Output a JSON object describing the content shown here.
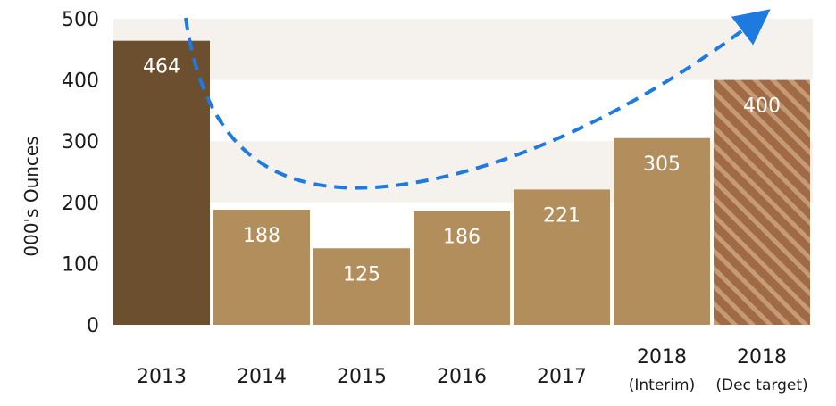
{
  "chart_data": {
    "type": "bar",
    "categories": [
      "2013",
      "2014",
      "2015",
      "2016",
      "2017",
      "2018",
      "2018"
    ],
    "category_sublabels": [
      "",
      "",
      "",
      "",
      "",
      "(Interim)",
      "(Dec target)"
    ],
    "values": [
      464,
      188,
      125,
      186,
      221,
      305,
      400
    ],
    "data_labels": [
      "464",
      "188",
      "125",
      "186",
      "221",
      "305",
      "400"
    ],
    "ylabel": "000's Ounces",
    "xlabel": "",
    "title": "",
    "ylim": [
      0,
      500
    ],
    "yticks": [
      0,
      100,
      200,
      300,
      400,
      500
    ],
    "ytick_labels": [
      "0",
      "100",
      "200",
      "300",
      "400",
      "500"
    ],
    "grid": "alternating horizontal bands",
    "legend": "none",
    "annotation": "dashed blue curved arrow from 2013 dipping near 2015 and rising past the 2018 target",
    "colors": {
      "bar_2013": "#6b4f2e",
      "bar_default": "#b38e5d",
      "bar_target": "#9f6a44",
      "bar_target_hatch": "#c79a76",
      "band": "#f5f1ec",
      "arrow": "#1f7ae0"
    }
  }
}
